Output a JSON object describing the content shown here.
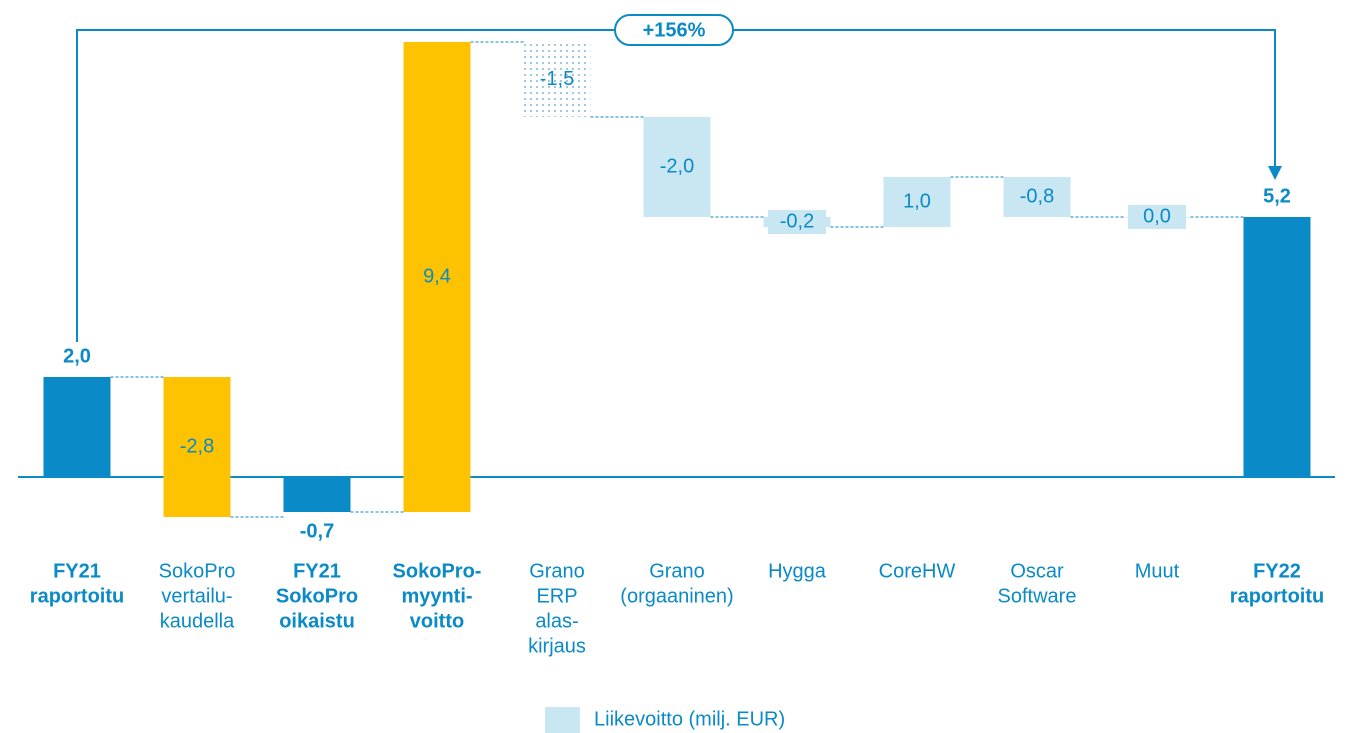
{
  "chart_data": {
    "type": "waterfall",
    "categories": [
      [
        "FY21",
        "raportoitu"
      ],
      [
        "SokoPro",
        "vertailu-",
        "kaudella"
      ],
      [
        "FY21",
        "SokoPro",
        "oikaistu"
      ],
      [
        "SokoPro-",
        "myynti-",
        "voitto"
      ],
      [
        "Grano",
        "ERP",
        "alas-",
        "kirjaus"
      ],
      [
        "Grano",
        "(orgaaninen)"
      ],
      [
        "Hygga"
      ],
      [
        "CoreHW"
      ],
      [
        "Oscar",
        "Software"
      ],
      [
        "Muut"
      ],
      [
        "FY22",
        "raportoitu"
      ]
    ],
    "category_bold": [
      true,
      false,
      true,
      true,
      false,
      false,
      false,
      false,
      false,
      false,
      true
    ],
    "values": [
      2.0,
      -2.8,
      -0.7,
      9.4,
      -1.5,
      -2.0,
      -0.2,
      1.0,
      -0.8,
      0.0,
      5.2
    ],
    "value_labels": [
      "2,0",
      "-2,8",
      "-0,7",
      "9,4",
      "-1,5",
      "-2,0",
      "-0,2",
      "1,0",
      "-0,8",
      "0,0",
      "5,2"
    ],
    "measure": [
      "total",
      "relative",
      "total",
      "relative",
      "relative",
      "relative",
      "relative",
      "relative",
      "relative",
      "relative",
      "total"
    ],
    "colors": [
      "#0a8ac6",
      "#fdc300",
      "#0a8ac6",
      "#fdc300",
      "url(#dots)",
      "#c9e7f3",
      "#c9e7f3",
      "#c9e7f3",
      "#c9e7f3",
      "#c9e7f3",
      "#0a8ac6"
    ],
    "annotation": "+156%",
    "legend": {
      "name": "Liikevoitto (milj. EUR)",
      "color": "#c9e7f3"
    }
  }
}
